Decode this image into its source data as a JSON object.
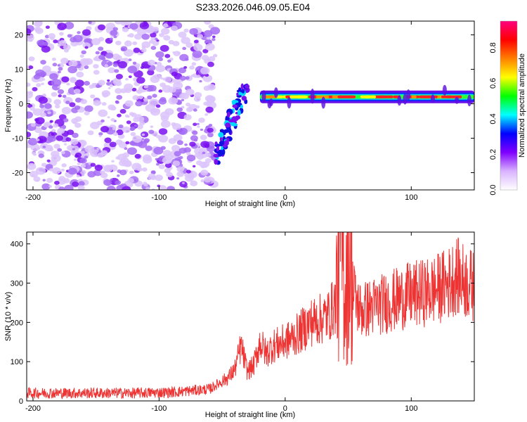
{
  "title": "S233.2026.046.09.05.E04",
  "chart_data": [
    {
      "type": "heatmap",
      "xlabel": "Height of straight line (km)",
      "ylabel": "Frequency (Hz)",
      "xlim": [
        -205,
        150
      ],
      "ylim": [
        -25,
        24
      ],
      "xticks": [
        -200,
        -100,
        0,
        100
      ],
      "yticks": [
        -20,
        -10,
        0,
        10,
        20
      ],
      "colorbar": {
        "label": "Normalized spectral amplitude",
        "range": [
          0,
          0.95
        ],
        "ticks": [
          "0.0",
          "0.2",
          "0.4",
          "0.6",
          "0.8"
        ],
        "colors": [
          "#ffffff",
          "#d9b3ff",
          "#8000ff",
          "#0000ff",
          "#00ffff",
          "#00ff00",
          "#ffff00",
          "#ff8000",
          "#ff0000",
          "#ff0080"
        ]
      },
      "features": [
        {
          "x_range": [
            -205,
            -55
          ],
          "freq_range": [
            -25,
            24
          ],
          "amplitude": 0.05,
          "pattern": "scattered noise"
        },
        {
          "x_range": [
            -55,
            -30
          ],
          "freq_range": [
            -20,
            5
          ],
          "amplitude": 0.25,
          "pattern": "dispersed"
        },
        {
          "x_range": [
            -20,
            150
          ],
          "freq_range": [
            1,
            3
          ],
          "amplitude": 0.9,
          "pattern": "narrow band"
        }
      ]
    },
    {
      "type": "line",
      "xlabel": "Height of straight line (km)",
      "ylabel": "SNR (10 * v/v)",
      "xlim": [
        -205,
        150
      ],
      "ylim": [
        0,
        430
      ],
      "xticks": [
        -200,
        -100,
        0,
        100
      ],
      "yticks": [
        0,
        100,
        200,
        300,
        400
      ],
      "color": "#ee3333",
      "x": [
        -205,
        -180,
        -150,
        -120,
        -90,
        -60,
        -45,
        -40,
        -35,
        -30,
        -25,
        -20,
        -15,
        -10,
        0,
        10,
        20,
        30,
        35,
        40,
        44,
        48,
        50,
        55,
        60,
        70,
        80,
        90,
        100,
        110,
        120,
        130,
        135,
        140,
        145,
        150
      ],
      "y": [
        20,
        20,
        20,
        20,
        22,
        30,
        60,
        80,
        140,
        75,
        90,
        150,
        120,
        140,
        150,
        170,
        200,
        210,
        220,
        250,
        430,
        280,
        380,
        260,
        230,
        240,
        250,
        260,
        270,
        275,
        285,
        300,
        320,
        310,
        300,
        290
      ]
    }
  ]
}
